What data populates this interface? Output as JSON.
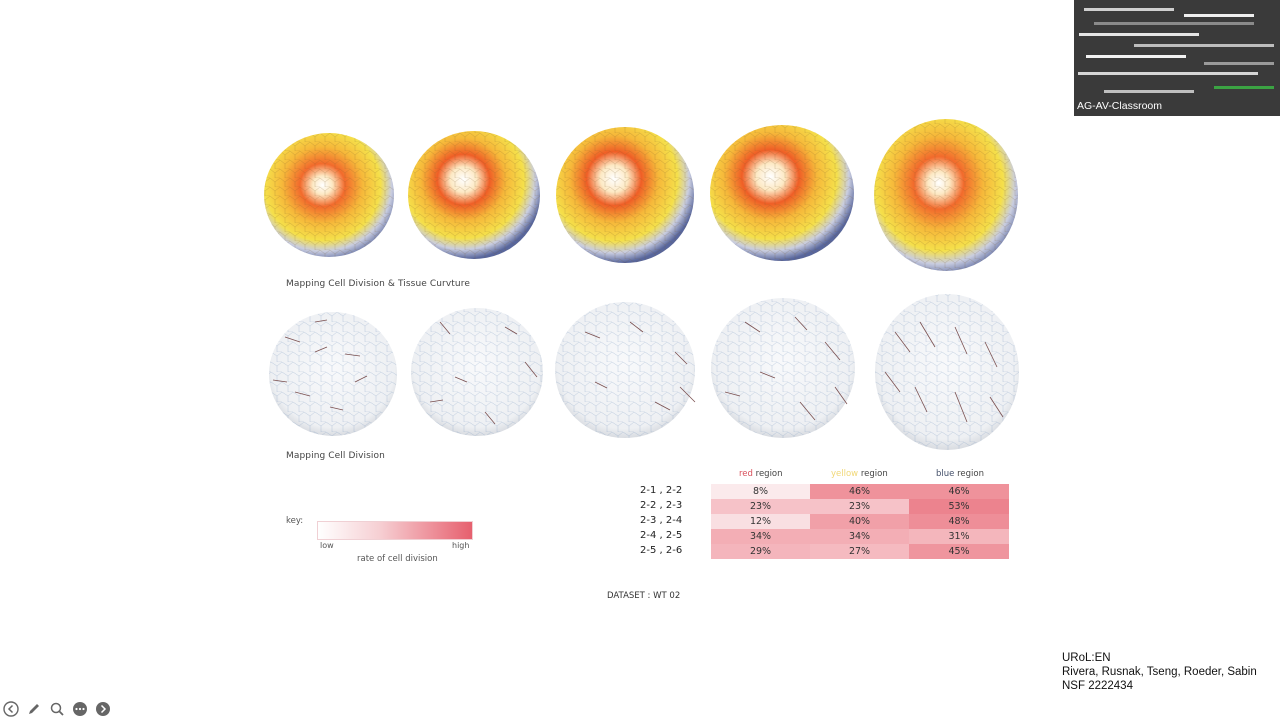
{
  "slide": {
    "caption_top": "Mapping Cell Division & Tissue Curvture",
    "caption_bottom": "Mapping Cell Division",
    "dataset_label": "DATASET : WT 02"
  },
  "key": {
    "label": "key:",
    "low": "low",
    "high": "high",
    "title": "rate of cell division",
    "gradient_colors": [
      "#ffffff",
      "#f6cfd3",
      "#ec8590",
      "#e6606e"
    ]
  },
  "table": {
    "headers": [
      {
        "color_word": "red",
        "suffix": " region",
        "color": "#d9505c"
      },
      {
        "color_word": "yellow",
        "suffix": " region",
        "color": "#f1d877"
      },
      {
        "color_word": "blue",
        "suffix": " region",
        "color": "#44506a"
      }
    ],
    "rows": [
      {
        "label": "2-1 , 2-2",
        "values": [
          "8%",
          "46%",
          "46%"
        ],
        "fills": [
          "#fbeaec",
          "#ef929b",
          "#ef929b"
        ]
      },
      {
        "label": "2-2 , 2-3",
        "values": [
          "23%",
          "23%",
          "53%"
        ],
        "fills": [
          "#f6c2c8",
          "#f6c2c8",
          "#ec838e"
        ]
      },
      {
        "label": "2-3 , 2-4",
        "values": [
          "12%",
          "40%",
          "48%"
        ],
        "fills": [
          "#f9dfe2",
          "#f1a0a8",
          "#ee8e98"
        ]
      },
      {
        "label": "2-4 , 2-5",
        "values": [
          "34%",
          "34%",
          "31%"
        ],
        "fills": [
          "#f3aeb5",
          "#f3aeb5",
          "#f4b6bc"
        ]
      },
      {
        "label": "2-5 , 2-6",
        "values": [
          "29%",
          "27%",
          "45%"
        ],
        "fills": [
          "#f4b5bc",
          "#f5bac0",
          "#ef959e"
        ]
      }
    ]
  },
  "credits": {
    "line1": "URoL:EN",
    "line2": "Rivera, Rusnak, Tseng, Roeder, Sabin",
    "line3": "NSF 2222434"
  },
  "webcam": {
    "label": "AG-AV-Classroom"
  },
  "toolbar": {
    "icons": [
      "back-icon",
      "pen-icon",
      "zoom-icon",
      "more-icon",
      "forward-icon"
    ]
  }
}
